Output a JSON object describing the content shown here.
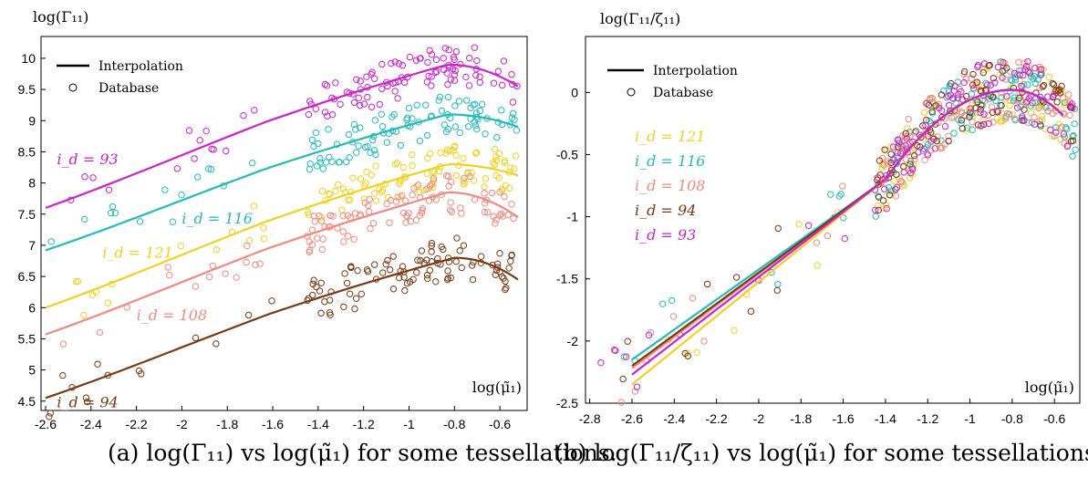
{
  "captions": [
    "(a) log(Γ₁₁) vs log(μ̃₁) for some tessellations.",
    "(b) log(Γ₁₁/ζ₁₁) vs log(μ̃₁) for some tessellations."
  ],
  "chart_data": [
    {
      "type": "scatter",
      "ylabel": "log(Γ₁₁)",
      "xlabel": "log(μ̃₁)",
      "xlim": [
        -2.62,
        -0.48
      ],
      "ylim": [
        4.35,
        10.35
      ],
      "xticks": [
        -2.6,
        -2.4,
        -2.2,
        -2,
        -1.8,
        -1.6,
        -1.4,
        -1.2,
        -1,
        -0.8,
        -0.6
      ],
      "yticks": [
        4.5,
        5,
        5.5,
        6,
        6.5,
        7,
        7.5,
        8,
        8.5,
        9,
        9.5,
        10
      ],
      "legend": [
        "Interpolation",
        "Database"
      ],
      "legend_position": "top-left",
      "grid": false,
      "colors": {
        "93": "#cc22cc",
        "116": "#22bbbb",
        "121": "#f2d020",
        "108": "#f08a80",
        "94": "#7a3a14"
      },
      "series": [
        {
          "name": "i_d = 93",
          "id": "93",
          "label_x": -2.55,
          "label_y": 8.3,
          "peak_x": -0.83,
          "peak_y": 9.9,
          "slope": 1.35,
          "left_y": 7.6,
          "right_y": 9.55,
          "spread": 0.18
        },
        {
          "name": "i_d = 116",
          "id": "116",
          "label_x": -2.0,
          "label_y": 7.35,
          "peak_x": -0.83,
          "peak_y": 9.1,
          "slope": 1.35,
          "left_y": 6.92,
          "right_y": 8.9,
          "spread": 0.18
        },
        {
          "name": "i_d = 121",
          "id": "121",
          "label_x": -2.35,
          "label_y": 6.8,
          "peak_x": -0.83,
          "peak_y": 8.3,
          "slope": 1.35,
          "left_y": 6.0,
          "right_y": 8.12,
          "spread": 0.18
        },
        {
          "name": "i_d = 108",
          "id": "108",
          "label_x": -2.2,
          "label_y": 5.8,
          "peak_x": -0.83,
          "peak_y": 7.85,
          "slope": 1.35,
          "left_y": 5.57,
          "right_y": 7.45,
          "spread": 0.18
        },
        {
          "name": "i_d = 94",
          "id": "94",
          "label_x": -2.55,
          "label_y": 4.4,
          "peak_x": -0.8,
          "peak_y": 6.8,
          "slope": 1.35,
          "left_y": 4.55,
          "right_y": 6.45,
          "spread": 0.2
        }
      ]
    },
    {
      "type": "scatter",
      "ylabel": "log(Γ₁₁/ζ₁₁)",
      "xlabel": "log(μ̃₁)",
      "xlim": [
        -2.82,
        -0.48
      ],
      "ylim": [
        -2.5,
        0.45
      ],
      "xticks": [
        -2.8,
        -2.6,
        -2.4,
        -2.2,
        -2,
        -1.8,
        -1.6,
        -1.4,
        -1.2,
        -1,
        -0.8,
        -0.6
      ],
      "yticks": [
        -2.5,
        -2,
        -1.5,
        -1,
        -0.5,
        0
      ],
      "legend": [
        "Interpolation",
        "Database"
      ],
      "legend_position": "top-left",
      "grid": false,
      "series": [
        {
          "name": "i_d = 121",
          "id": "121",
          "left_y": -2.35
        },
        {
          "name": "i_d = 116",
          "id": "116",
          "left_y": -2.15
        },
        {
          "name": "i_d = 108",
          "id": "108",
          "left_y": -2.22
        },
        {
          "name": "i_d = 94",
          "id": "94",
          "left_y": -2.2
        },
        {
          "name": "i_d = 93",
          "id": "93",
          "left_y": -2.27
        }
      ]
    }
  ]
}
